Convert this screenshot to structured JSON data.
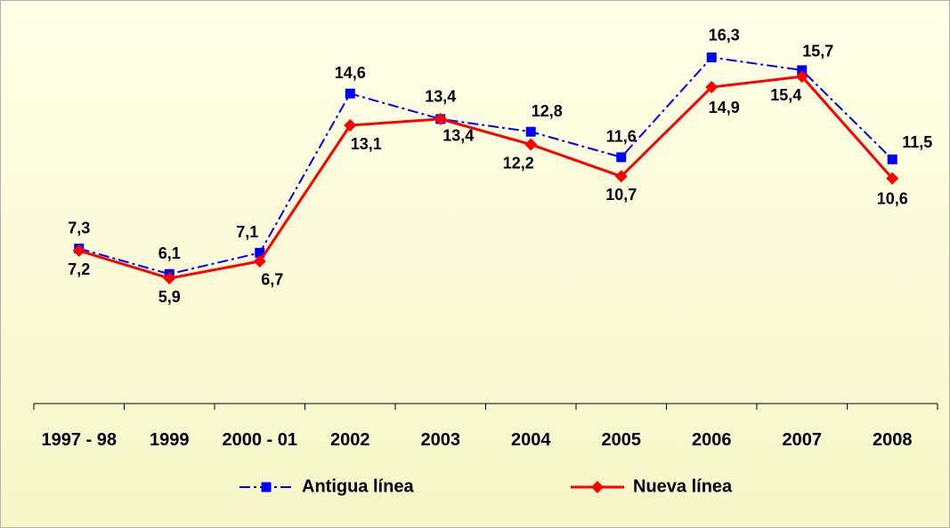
{
  "chart_data": {
    "type": "line",
    "categories": [
      "1997 - 98",
      "1999",
      "2000 - 01",
      "2002",
      "2003",
      "2004",
      "2005",
      "2006",
      "2007",
      "2008"
    ],
    "ylim": [
      0,
      18
    ],
    "series": [
      {
        "name": "Antigua línea",
        "color": "#0000ff",
        "values": [
          7.3,
          6.1,
          7.1,
          14.6,
          13.4,
          12.8,
          11.6,
          16.3,
          15.7,
          11.5
        ],
        "value_labels": [
          "7,3",
          "6,1",
          "7,1",
          "14,6",
          "13,4",
          "12,8",
          "11,6",
          "16,3",
          "15,7",
          "11,5"
        ]
      },
      {
        "name": "Nueva línea",
        "color": "#ff0000",
        "values": [
          7.2,
          5.9,
          6.7,
          13.1,
          13.4,
          12.2,
          10.7,
          14.9,
          15.4,
          10.6
        ],
        "value_labels": [
          "7,2",
          "5,9",
          "6,7",
          "13,1",
          "13,4",
          "12,2",
          "10,7",
          "14,9",
          "15,4",
          "10,6"
        ]
      }
    ]
  }
}
